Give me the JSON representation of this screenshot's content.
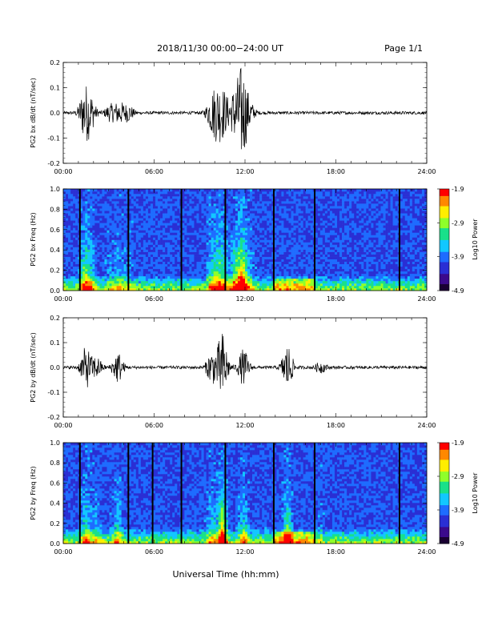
{
  "header": {
    "title": "2018/11/30  00:00−24:00 UT",
    "page": "Page 1/1"
  },
  "footer": {
    "xlabel": "Universal Time (hh:mm)"
  },
  "colors": {
    "trace": "#000000",
    "spectrogram_scale": [
      "#1a0033",
      "#3b0a8c",
      "#2a2fd4",
      "#1e6cff",
      "#12c7ff",
      "#19e08a",
      "#8fff2a",
      "#ffee00",
      "#ff8800",
      "#ff0000"
    ]
  },
  "chart_data": [
    {
      "type": "line",
      "id": "bx-waveform",
      "ylabel": "PG2 bx dB/dt (nT/sec)",
      "xlim": [
        0,
        24
      ],
      "ylim": [
        -0.2,
        0.2
      ],
      "xticks": [
        "00:00",
        "06:00",
        "12:00",
        "18:00",
        "24:00"
      ],
      "yticks": [
        "-0.2",
        "-0.1",
        "0.0",
        "0.1",
        "0.2"
      ],
      "bursts": [
        {
          "t": 1.4,
          "amp": 0.09
        },
        {
          "t": 1.8,
          "amp": 0.06
        },
        {
          "t": 3.1,
          "amp": 0.03
        },
        {
          "t": 3.7,
          "amp": 0.04
        },
        {
          "t": 4.3,
          "amp": 0.03
        },
        {
          "t": 9.8,
          "amp": 0.06
        },
        {
          "t": 10.2,
          "amp": 0.08
        },
        {
          "t": 10.6,
          "amp": 0.07
        },
        {
          "t": 11.3,
          "amp": 0.08
        },
        {
          "t": 11.8,
          "amp": 0.17
        },
        {
          "t": 12.3,
          "amp": 0.04
        }
      ]
    },
    {
      "type": "heatmap",
      "id": "bx-spectrogram",
      "ylabel": "PG2 bx Freq (Hz)",
      "colorbar_label": "Log10 Power",
      "colorbar_ticks": [
        "-1.9",
        "-2.9",
        "-3.9",
        "-4.9"
      ],
      "zlim": [
        -4.9,
        -1.9
      ],
      "xlim": [
        0,
        24
      ],
      "ylim": [
        0.0,
        1.0
      ],
      "xticks": [
        "00:00",
        "06:00",
        "12:00",
        "18:00",
        "24:00"
      ],
      "yticks": [
        "0.0",
        "0.2",
        "0.4",
        "0.6",
        "0.8",
        "1.0"
      ],
      "gaps_hours": [
        1.1,
        4.3,
        7.8,
        10.7,
        13.9,
        16.6,
        22.2
      ]
    },
    {
      "type": "line",
      "id": "by-waveform",
      "ylabel": "PG2 by dB/dt (nT/sec)",
      "xlim": [
        0,
        24
      ],
      "ylim": [
        -0.2,
        0.2
      ],
      "xticks": [
        "00:00",
        "06:00",
        "12:00",
        "18:00",
        "24:00"
      ],
      "yticks": [
        "-0.2",
        "-0.1",
        "0.0",
        "0.1",
        "0.2"
      ],
      "bursts": [
        {
          "t": 1.5,
          "amp": 0.08
        },
        {
          "t": 2.2,
          "amp": 0.04
        },
        {
          "t": 3.6,
          "amp": 0.06
        },
        {
          "t": 9.8,
          "amp": 0.06
        },
        {
          "t": 10.5,
          "amp": 0.14
        },
        {
          "t": 11.9,
          "amp": 0.07
        },
        {
          "t": 14.8,
          "amp": 0.09
        },
        {
          "t": 17.0,
          "amp": 0.02
        }
      ]
    },
    {
      "type": "heatmap",
      "id": "by-spectrogram",
      "ylabel": "PG2 by Freq (Hz)",
      "colorbar_label": "Log10 Power",
      "colorbar_ticks": [
        "-1.9",
        "-2.9",
        "-3.9",
        "-4.9"
      ],
      "zlim": [
        -4.9,
        -1.9
      ],
      "xlim": [
        0,
        24
      ],
      "ylim": [
        0.0,
        1.0
      ],
      "xticks": [
        "00:00",
        "06:00",
        "12:00",
        "18:00",
        "24:00"
      ],
      "yticks": [
        "0.0",
        "0.2",
        "0.4",
        "0.6",
        "0.8",
        "1.0"
      ],
      "gaps_hours": [
        1.1,
        4.3,
        5.9,
        7.8,
        10.7,
        13.9,
        16.6,
        22.2
      ]
    }
  ]
}
